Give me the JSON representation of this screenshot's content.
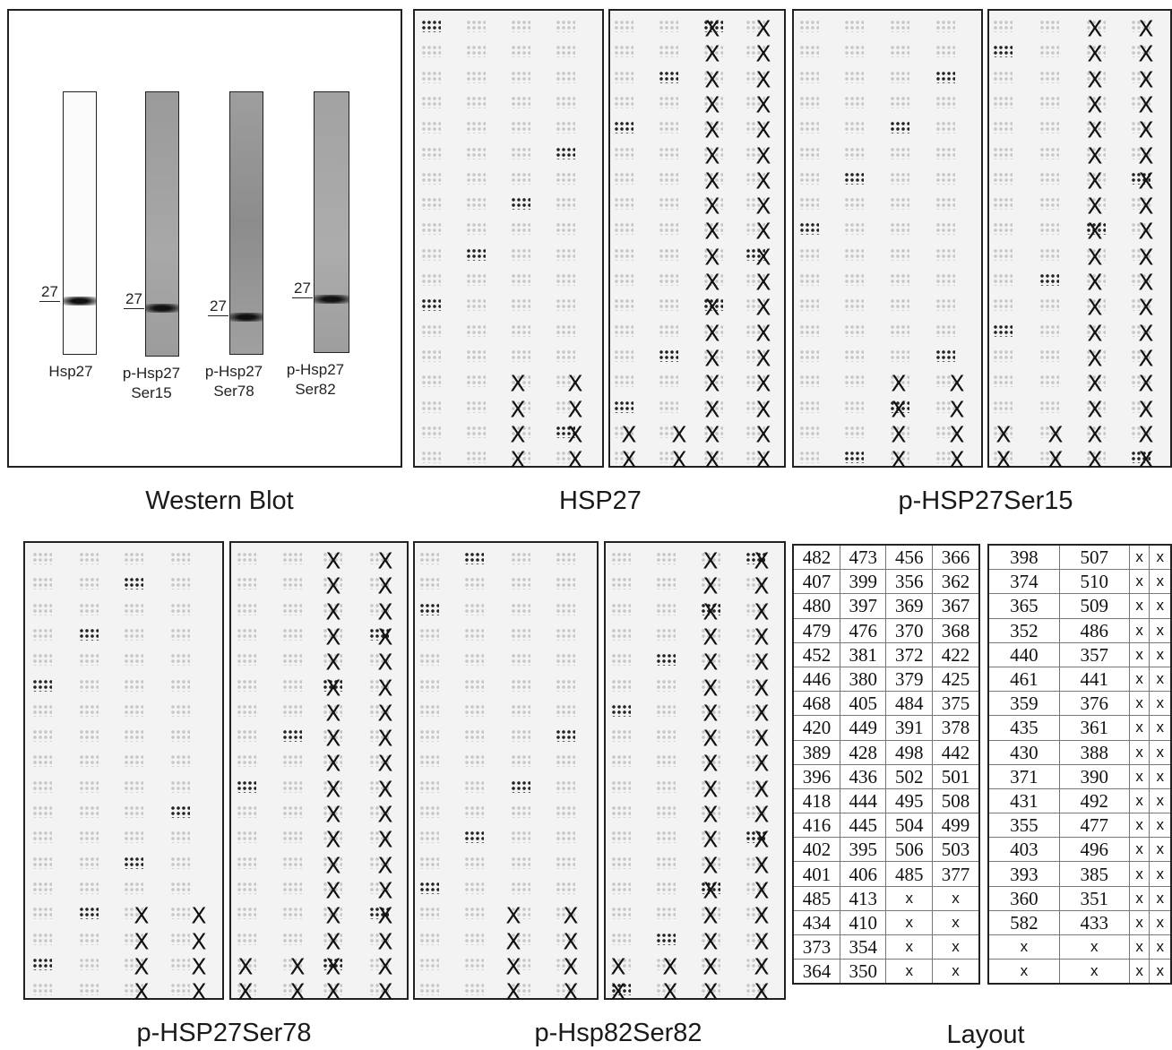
{
  "western_blot": {
    "caption": "Western Blot",
    "lanes": [
      {
        "label_lines": [
          "Hsp27"
        ],
        "marker": "27"
      },
      {
        "label_lines": [
          "p-Hsp27",
          "Ser15"
        ],
        "marker": "27"
      },
      {
        "label_lines": [
          "p-Hsp27",
          "Ser78"
        ],
        "marker": "27"
      },
      {
        "label_lines": [
          "p-Hsp27",
          "Ser82"
        ],
        "marker": "27"
      }
    ]
  },
  "arrays": [
    {
      "caption": "HSP27"
    },
    {
      "caption": "p-HSP27Ser15"
    },
    {
      "caption": "p-HSP27Ser78"
    },
    {
      "caption": "p-Hsp82Ser82"
    }
  ],
  "x_mark": "X",
  "layout": {
    "caption": "Layout",
    "left_table": [
      [
        "482",
        "473",
        "456",
        "366"
      ],
      [
        "407",
        "399",
        "356",
        "362"
      ],
      [
        "480",
        "397",
        "369",
        "367"
      ],
      [
        "479",
        "476",
        "370",
        "368"
      ],
      [
        "452",
        "381",
        "372",
        "422"
      ],
      [
        "446",
        "380",
        "379",
        "425"
      ],
      [
        "468",
        "405",
        "484",
        "375"
      ],
      [
        "420",
        "449",
        "391",
        "378"
      ],
      [
        "389",
        "428",
        "498",
        "442"
      ],
      [
        "396",
        "436",
        "502",
        "501"
      ],
      [
        "418",
        "444",
        "495",
        "508"
      ],
      [
        "416",
        "445",
        "504",
        "499"
      ],
      [
        "402",
        "395",
        "506",
        "503"
      ],
      [
        "401",
        "406",
        "485",
        "377"
      ],
      [
        "485",
        "413",
        "x",
        "x"
      ],
      [
        "434",
        "410",
        "x",
        "x"
      ],
      [
        "373",
        "354",
        "x",
        "x"
      ],
      [
        "364",
        "350",
        "x",
        "x"
      ]
    ],
    "right_table": [
      [
        "398",
        "507",
        "x",
        "x"
      ],
      [
        "374",
        "510",
        "x",
        "x"
      ],
      [
        "365",
        "509",
        "x",
        "x"
      ],
      [
        "352",
        "486",
        "x",
        "x"
      ],
      [
        "440",
        "357",
        "x",
        "x"
      ],
      [
        "461",
        "441",
        "x",
        "x"
      ],
      [
        "359",
        "376",
        "x",
        "x"
      ],
      [
        "435",
        "361",
        "x",
        "x"
      ],
      [
        "430",
        "388",
        "x",
        "x"
      ],
      [
        "371",
        "390",
        "x",
        "x"
      ],
      [
        "431",
        "492",
        "x",
        "x"
      ],
      [
        "355",
        "477",
        "x",
        "x"
      ],
      [
        "403",
        "496",
        "x",
        "x"
      ],
      [
        "393",
        "385",
        "x",
        "x"
      ],
      [
        "360",
        "351",
        "x",
        "x"
      ],
      [
        "582",
        "433",
        "x",
        "x"
      ],
      [
        "x",
        "x",
        "x",
        "x"
      ],
      [
        "x",
        "x",
        "x",
        "x"
      ]
    ]
  }
}
